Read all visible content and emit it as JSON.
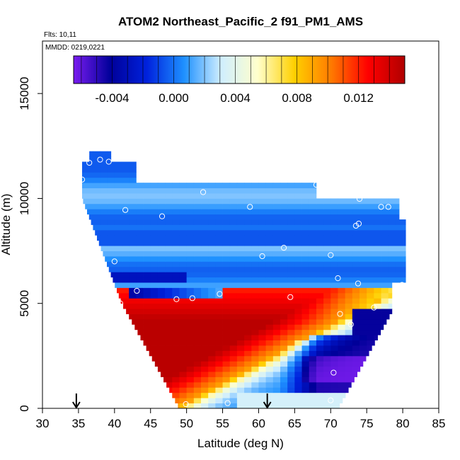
{
  "chart_data": {
    "type": "heatmap",
    "title": "ATOM2 Northeast_Pacific_2 f91_PM1_AMS",
    "annotations": [
      "Flts: 10,11",
      "MMDD: 0219,0221"
    ],
    "xlabel": "Latitude (deg N)",
    "ylabel": "Altitude (m)",
    "xlim": [
      30,
      85
    ],
    "ylim": [
      0,
      17500
    ],
    "x_ticks": [
      30,
      35,
      40,
      45,
      50,
      55,
      60,
      65,
      70,
      75,
      80,
      85
    ],
    "y_ticks": [
      0,
      5000,
      10000,
      15000
    ],
    "grid": false,
    "colorbar": {
      "placement": "top-inside",
      "range": [
        -0.0065,
        0.015
      ],
      "ticks": [
        -0.004,
        0.0,
        0.004,
        0.008,
        0.012
      ],
      "tick_labels": [
        "-0.004",
        "0.000",
        "0.004",
        "0.008",
        "0.012"
      ],
      "colors": [
        "#7a1cf0",
        "#000099",
        "#0022dd",
        "#1e90ff",
        "#cfeeff",
        "#ffffcc",
        "#ffd000",
        "#ff7a00",
        "#ff0000",
        "#b00000"
      ]
    },
    "arrows_latitude": [
      34.7,
      61.2
    ],
    "observations": [
      [
        36.5,
        11700
      ],
      [
        38,
        11850
      ],
      [
        39.2,
        11750
      ],
      [
        35.5,
        10900
      ],
      [
        52.3,
        10300
      ],
      [
        41.5,
        9450
      ],
      [
        46.6,
        9150
      ],
      [
        58.8,
        9600
      ],
      [
        68,
        10650
      ],
      [
        74,
        9980
      ],
      [
        77,
        9600
      ],
      [
        78,
        9600
      ],
      [
        73.5,
        8700
      ],
      [
        73.9,
        8800
      ],
      [
        63.5,
        7650
      ],
      [
        60.5,
        7250
      ],
      [
        70,
        7300
      ],
      [
        40,
        7000
      ],
      [
        71,
        6200
      ],
      [
        73.8,
        5950
      ],
      [
        79.9,
        5880
      ],
      [
        43.1,
        5600
      ],
      [
        54.6,
        5450
      ],
      [
        48.6,
        5200
      ],
      [
        50.8,
        5250
      ],
      [
        64.4,
        5300
      ],
      [
        40.8,
        5000
      ],
      [
        76,
        4800
      ],
      [
        71.3,
        4500
      ],
      [
        72.8,
        4000
      ],
      [
        70.4,
        1700
      ],
      [
        49.9,
        200
      ],
      [
        55.7,
        250
      ],
      [
        70,
        380
      ]
    ]
  }
}
